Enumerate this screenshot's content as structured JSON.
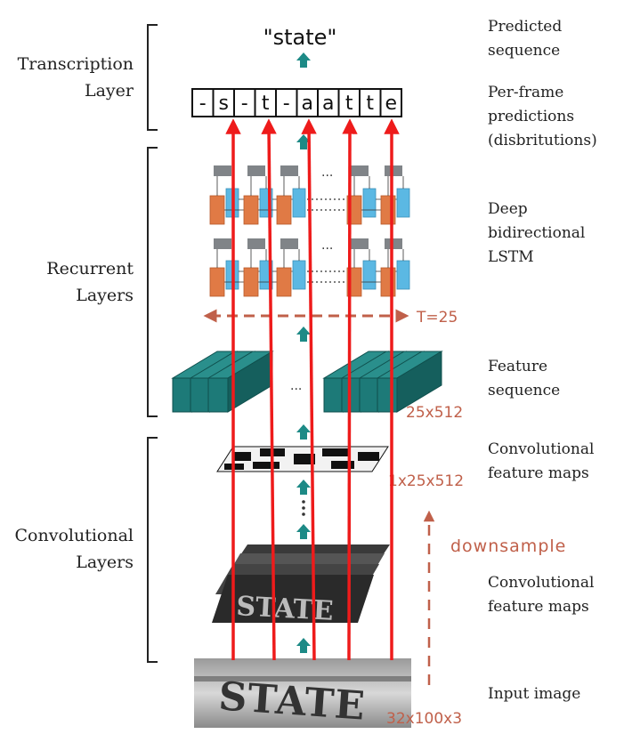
{
  "layers": {
    "transcription": [
      "Transcription",
      "Layer"
    ],
    "recurrent": [
      "Recurrent",
      "Layers"
    ],
    "convolutional": [
      "Convolutional",
      "Layers"
    ]
  },
  "descriptions": {
    "predicted": [
      "Predicted",
      "sequence"
    ],
    "per_frame": [
      "Per-frame",
      "predictions",
      "(disbritutions)"
    ],
    "lstm": [
      "Deep",
      "bidirectional",
      "LSTM"
    ],
    "feature_seq": [
      "Feature",
      "sequence"
    ],
    "conv_maps_top": [
      "Convolutional",
      "feature maps"
    ],
    "conv_maps_bottom": [
      "Convolutional",
      "feature maps"
    ],
    "input": "Input image"
  },
  "predicted_text": "\"state\"",
  "frame_chars": [
    "-",
    "s",
    "-",
    "t",
    "-",
    "a",
    "a",
    "t",
    "t",
    "e"
  ],
  "dims": {
    "t": "T=25",
    "feature": "25x512",
    "conv": "1x25x512",
    "input": "32x100x3"
  },
  "downsample": "downsample",
  "image_text": "STATE",
  "ellipsis": "...",
  "colors": {
    "teal": "#1d7a78",
    "orange": "#e07a45",
    "blue": "#5bb8e3",
    "gray": "#808488",
    "rust": "#c0604a",
    "red": "#ee1b1b"
  }
}
